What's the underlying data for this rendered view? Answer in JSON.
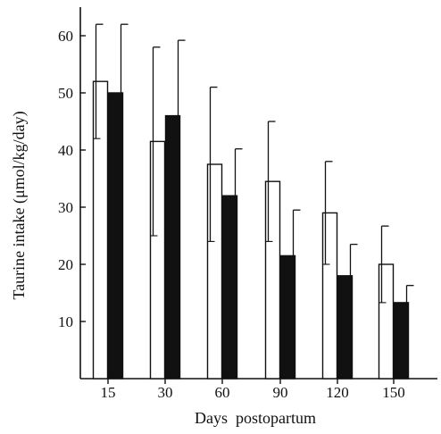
{
  "chart_data": {
    "type": "bar",
    "categories": [
      "15",
      "30",
      "60",
      "90",
      "120",
      "150"
    ],
    "series": [
      {
        "fill": "#ffffff",
        "values": [
          52,
          41.5,
          37.5,
          34.5,
          29,
          20
        ],
        "error": [
          10,
          16.5,
          13.5,
          10.5,
          9,
          6.7
        ]
      },
      {
        "fill": "#111111",
        "values": [
          50,
          46,
          32,
          21.5,
          18,
          13.3
        ],
        "error": [
          12,
          13.2,
          8.2,
          8,
          5.5,
          3
        ]
      }
    ],
    "xlabel": "Days  postopartum",
    "ylabel": "Taurine intake (μmol/kg/day)",
    "ylim": [
      0,
      65
    ],
    "yticks": [
      "10",
      "20",
      "30",
      "40",
      "50",
      "60"
    ]
  }
}
